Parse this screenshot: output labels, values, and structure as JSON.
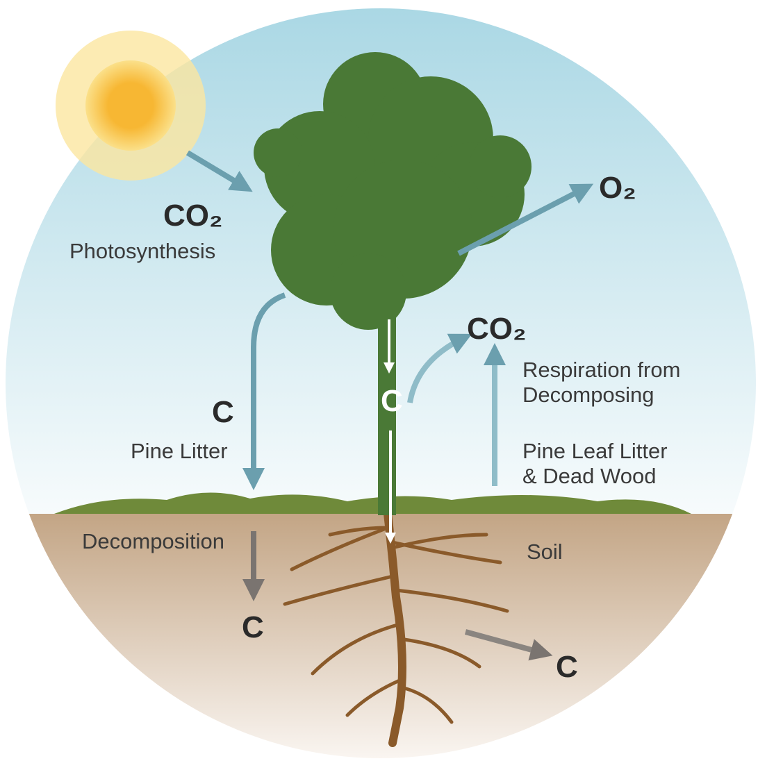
{
  "labels": {
    "photosynthesis_gas": "CO₂",
    "photosynthesis": "Photosynthesis",
    "oxygen": "O₂",
    "litter_carbon": "C",
    "pine_litter": "Pine Litter",
    "trunk_carbon": "C",
    "respiration_gas": "CO₂",
    "respiration": [
      "Respiration from",
      "Decomposing"
    ],
    "litter_wood": [
      "Pine Leaf Litter",
      "& Dead Wood"
    ],
    "decomposition": "Decomposition",
    "decomposition_carbon": "C",
    "soil": "Soil",
    "root_carbon": "C"
  }
}
